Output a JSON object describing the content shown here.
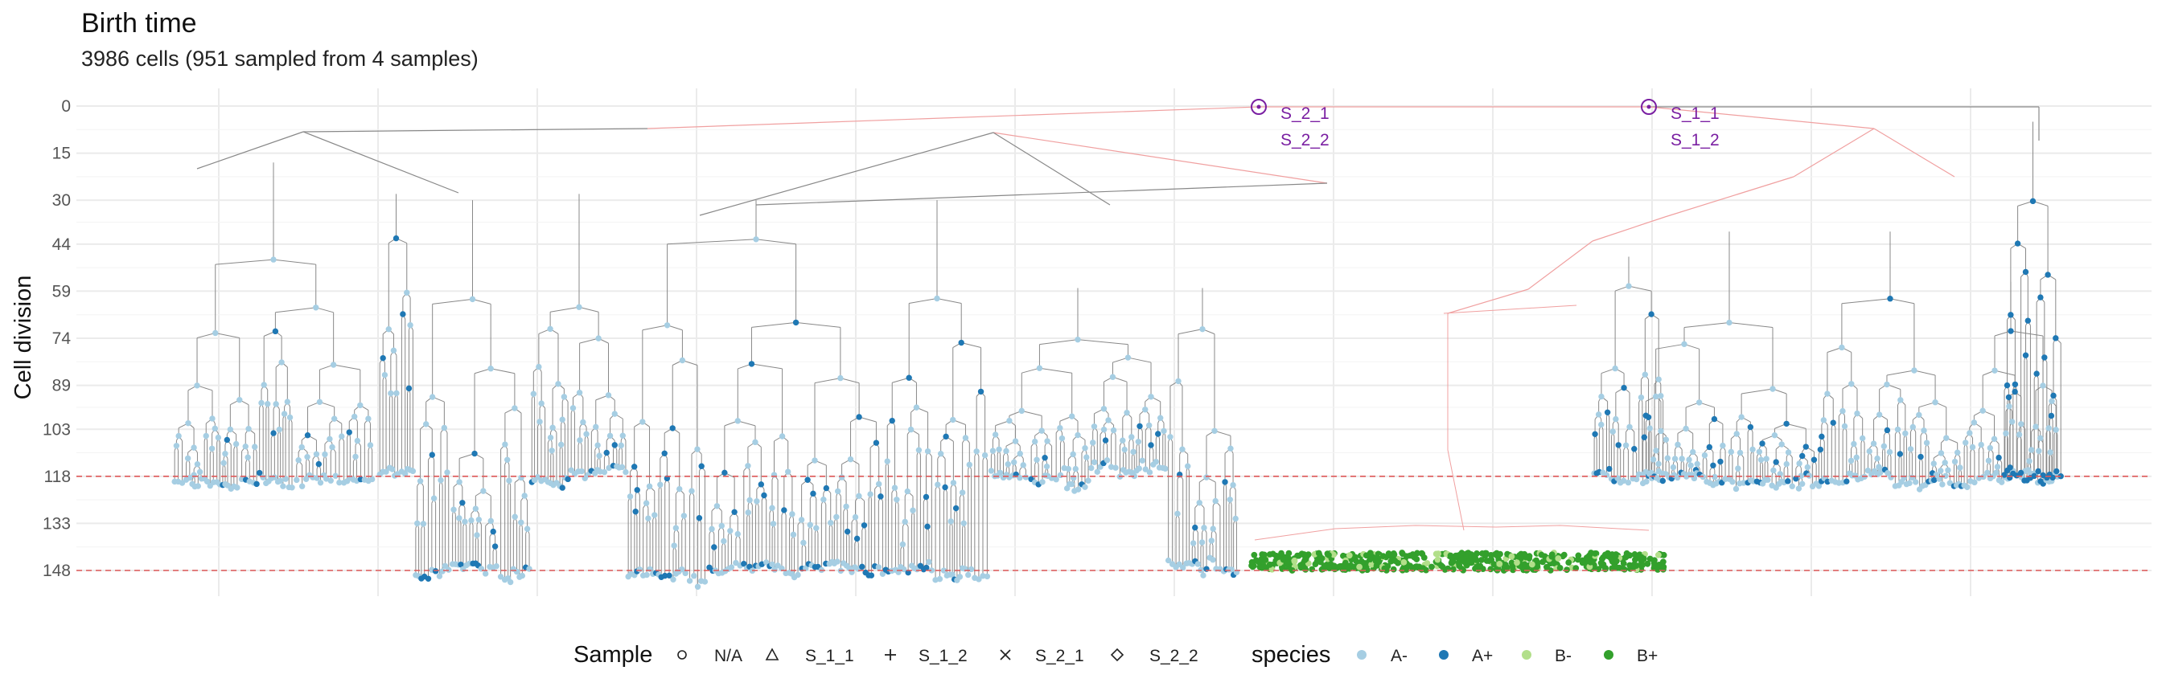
{
  "chart_data": {
    "type": "tree",
    "title": "Birth time",
    "subtitle": "3986 cells (951 sampled from 4 samples)",
    "ylabel": "Cell division",
    "y_ticks": [
      0,
      15,
      30,
      44,
      59,
      74,
      89,
      103,
      118,
      133,
      148
    ],
    "ylim": [
      0,
      148
    ],
    "y_inverted": true,
    "grid": true,
    "reference_lines": [
      118,
      148
    ],
    "reference_line_color": "#e05a5a",
    "roots": [
      {
        "division": 0,
        "labels": [
          "S_2_1",
          "S_2_2"
        ]
      },
      {
        "division": 0,
        "labels": [
          "S_1_1",
          "S_1_2"
        ]
      }
    ],
    "clusters": [
      {
        "species": "A-",
        "sampled_at": 118
      },
      {
        "species": "A-",
        "sampled_at": 148
      },
      {
        "species": "A+",
        "sampled_at": 148
      },
      {
        "species": "B+",
        "sampled_at": 148
      },
      {
        "species": "A-",
        "sampled_at": 118
      },
      {
        "species": "A+",
        "sampled_at": 118
      }
    ],
    "legend": {
      "sample": {
        "title": "Sample",
        "items": [
          {
            "label": "N/A",
            "shape": "circle"
          },
          {
            "label": "S_1_1",
            "shape": "triangle"
          },
          {
            "label": "S_1_2",
            "shape": "plus"
          },
          {
            "label": "S_2_1",
            "shape": "cross"
          },
          {
            "label": "S_2_2",
            "shape": "diamond"
          }
        ]
      },
      "species": {
        "title": "species",
        "items": [
          {
            "label": "A-",
            "color": "#a6cee3"
          },
          {
            "label": "A+",
            "color": "#1f78b4"
          },
          {
            "label": "B-",
            "color": "#b2df8a"
          },
          {
            "label": "B+",
            "color": "#33a02c"
          }
        ]
      }
    },
    "colors": {
      "tree_edge_A": "#888888",
      "tree_edge_B": "#f0a0a0",
      "root_marker": "#7a1fa2",
      "grid": "#ebebeb"
    }
  }
}
